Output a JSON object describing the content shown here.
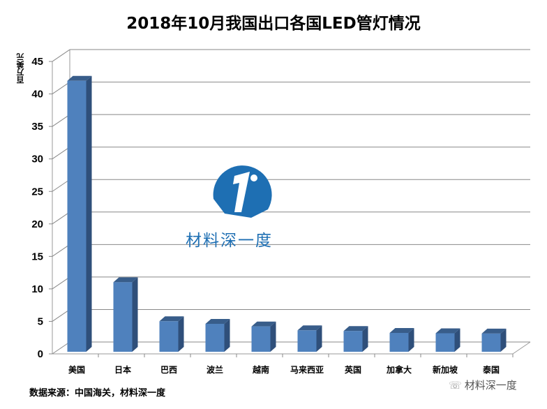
{
  "chart_data": {
    "type": "bar",
    "title": "2018年10月我国出口各国LED管灯情况",
    "ylabel": "百万美元",
    "xlabel": "",
    "categories": [
      "美国",
      "日本",
      "巴西",
      "波兰",
      "越南",
      "马来西亚",
      "英国",
      "加拿大",
      "新加坡",
      "泰国"
    ],
    "values": [
      41.7,
      10.7,
      4.7,
      4.3,
      3.9,
      3.3,
      3.2,
      2.9,
      2.85,
      2.8
    ],
    "ylim": [
      0,
      45
    ],
    "yticks": [
      "0",
      "5",
      "10",
      "15",
      "20",
      "25",
      "30",
      "35",
      "40",
      "45"
    ],
    "grid": true,
    "style": "3d-column",
    "bar_color": "#4f81bd",
    "bar_side_color": "#2f4f7a",
    "bar_top_color": "#385d8a"
  },
  "source": "数据来源：中国海关，材料深一度",
  "logo_text": "材料深一度",
  "watermark": "材料深一度",
  "watermark_icon": "wechat-icon",
  "logo_color": "#1e6fb3"
}
